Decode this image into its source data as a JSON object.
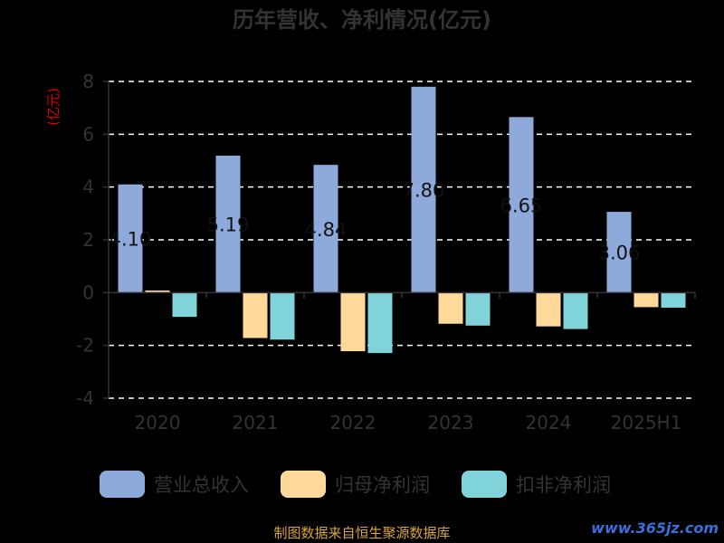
{
  "chart_data": {
    "type": "bar",
    "title": "历年营收、净利情况(亿元)",
    "ylabel": "(亿元)",
    "ylim": [
      -4,
      8
    ],
    "yticks": [
      -4,
      -2,
      0,
      2,
      4,
      6,
      8
    ],
    "categories": [
      "2020",
      "2021",
      "2022",
      "2023",
      "2024",
      "2025H1"
    ],
    "series": [
      {
        "name": "营业总收入",
        "color": "#8eaadb",
        "values": [
          4.1,
          5.19,
          4.84,
          7.8,
          6.65,
          3.06
        ]
      },
      {
        "name": "归母净利润",
        "color": "#ffd99a",
        "values": [
          0.08,
          -1.72,
          -2.22,
          -1.18,
          -1.28,
          -0.55
        ]
      },
      {
        "name": "扣非净利润",
        "color": "#80d3d8",
        "values": [
          -0.92,
          -1.78,
          -2.29,
          -1.25,
          -1.38,
          -0.57
        ]
      }
    ],
    "data_labels": [
      "4.10",
      "5.19",
      "4.84",
      "7.80",
      "6.65",
      "3.06"
    ],
    "grid": true,
    "legend_position": "bottom"
  },
  "footer": {
    "source": "制图数据来自恒生聚源数据库",
    "watermark": "www.365jz.com"
  }
}
